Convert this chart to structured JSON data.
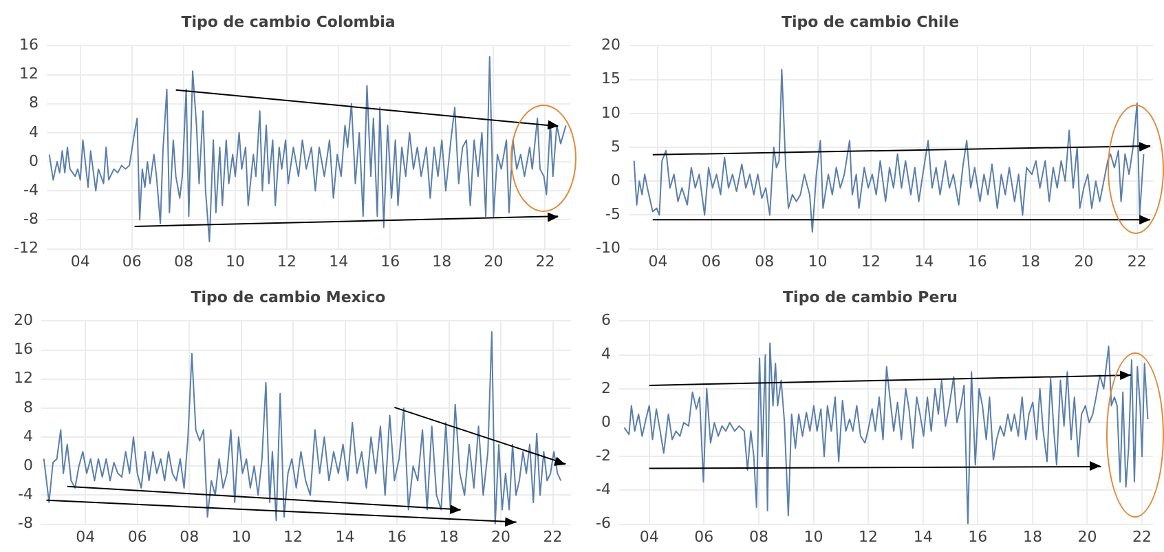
{
  "chart_data": [
    {
      "type": "line",
      "title": "Tipo de cambio Colombia",
      "grid": true,
      "xlim": [
        2002.7,
        2023.0
      ],
      "xticks": [
        {
          "value": 2004,
          "label": "04"
        },
        {
          "value": 2006,
          "label": "06"
        },
        {
          "value": 2008,
          "label": "08"
        },
        {
          "value": 2010,
          "label": "10"
        },
        {
          "value": 2012,
          "label": "12"
        },
        {
          "value": 2014,
          "label": "14"
        },
        {
          "value": 2016,
          "label": "16"
        },
        {
          "value": 2018,
          "label": "18"
        },
        {
          "value": 2020,
          "label": "20"
        },
        {
          "value": 2022,
          "label": "22"
        }
      ],
      "ylim": [
        -12,
        16
      ],
      "yticks": [
        -12,
        -8,
        -4,
        0,
        4,
        8,
        12,
        16
      ],
      "series": [
        {
          "color": "#5a7fab",
          "x": [
            2002.8,
            2002.95,
            2003.1,
            2003.2,
            2003.3,
            2003.4,
            2003.5,
            2003.6,
            2003.8,
            2003.9,
            2004.0,
            2004.1,
            2004.3,
            2004.4,
            2004.6,
            2004.7,
            2004.9,
            2005.0,
            2005.1,
            2005.3,
            2005.45,
            2005.6,
            2005.75,
            2005.9,
            2006.1,
            2006.2,
            2006.3,
            2006.4,
            2006.5,
            2006.6,
            2006.7,
            2006.85,
            2006.95,
            2007.1,
            2007.2,
            2007.35,
            2007.45,
            2007.6,
            2007.7,
            2007.85,
            2007.95,
            2008.1,
            2008.2,
            2008.35,
            2008.5,
            2008.6,
            2008.75,
            2008.85,
            2009.0,
            2009.15,
            2009.25,
            2009.4,
            2009.5,
            2009.65,
            2009.75,
            2009.9,
            2010.0,
            2010.15,
            2010.25,
            2010.4,
            2010.5,
            2010.7,
            2010.8,
            2010.95,
            2011.05,
            2011.2,
            2011.3,
            2011.45,
            2011.55,
            2011.7,
            2011.8,
            2011.95,
            2012.05,
            2012.25,
            2012.45,
            2012.6,
            2012.75,
            2012.95,
            2013.1,
            2013.25,
            2013.45,
            2013.65,
            2013.8,
            2013.95,
            2014.1,
            2014.25,
            2014.35,
            2014.5,
            2014.65,
            2014.8,
            2014.95,
            2015.1,
            2015.25,
            2015.35,
            2015.5,
            2015.6,
            2015.75,
            2015.9,
            2016.05,
            2016.2,
            2016.3,
            2016.45,
            2016.6,
            2016.75,
            2016.9,
            2017.05,
            2017.2,
            2017.4,
            2017.55,
            2017.7,
            2017.85,
            2018.0,
            2018.15,
            2018.35,
            2018.5,
            2018.65,
            2018.8,
            2018.95,
            2019.1,
            2019.25,
            2019.4,
            2019.55,
            2019.7,
            2019.85,
            2020.0,
            2020.15,
            2020.3,
            2020.5,
            2020.6,
            2020.75,
            2020.9,
            2021.05,
            2021.2,
            2021.4,
            2021.5,
            2021.7,
            2021.8,
            2021.95,
            2022.05,
            2022.2,
            2022.3,
            2022.45,
            2022.6,
            2022.8
          ],
          "values": [
            1,
            -2.5,
            0,
            -1.5,
            1.5,
            -1.5,
            2,
            -1,
            -2,
            -1,
            -2.5,
            3,
            -3.5,
            1.5,
            -4,
            -1,
            -3,
            2,
            -2.5,
            -1,
            -1.5,
            -0.5,
            -1,
            -0.5,
            4,
            6,
            -8,
            -1,
            -3.5,
            0,
            -3,
            1,
            -2,
            -8.5,
            1.5,
            10,
            -7,
            3,
            -2,
            -5,
            -2,
            10,
            -7.5,
            12.5,
            5,
            -3,
            7,
            -4,
            -11,
            3,
            -7,
            2,
            -6,
            3,
            -3,
            1,
            -2,
            4,
            -1,
            2,
            -6,
            1,
            -2,
            7,
            -4,
            5,
            -3,
            3,
            -6,
            2,
            -1,
            3,
            -3,
            2,
            -2,
            3,
            -1,
            2,
            -4,
            2,
            -2,
            3,
            -5,
            1,
            -2,
            5,
            2,
            8,
            -3,
            4,
            -7.5,
            10.5,
            -2,
            6,
            -7.5,
            7.5,
            -9,
            5,
            -5,
            3,
            -6,
            2,
            -2,
            4,
            -1,
            2,
            -2,
            2,
            -5,
            2,
            -2,
            3,
            -4,
            3,
            7.5,
            -3,
            2,
            3,
            -6,
            3,
            -2,
            4,
            -7.5,
            14.5,
            -7.5,
            1,
            -1,
            3,
            -7,
            3,
            -1,
            1,
            -2,
            2,
            -1,
            6,
            -1,
            -2,
            -4.5,
            5.5,
            -2,
            5,
            2.5,
            5
          ]
        },
        {
          "type": "line",
          "color": "#000000",
          "x": [
            2007.7,
            2022.5
          ],
          "values": [
            9.9,
            4.9
          ]
        },
        {
          "type": "line",
          "color": "#000000",
          "x": [
            2006.1,
            2022.5
          ],
          "values": [
            -8.9,
            -7.5
          ]
        }
      ]
    },
    {
      "type": "line",
      "title": "Tipo de cambio Chile",
      "grid": true,
      "xlim": [
        2002.9,
        2022.6
      ],
      "xticks": [
        {
          "value": 2004,
          "label": "04"
        },
        {
          "value": 2006,
          "label": "06"
        },
        {
          "value": 2008,
          "label": "08"
        },
        {
          "value": 2010,
          "label": "10"
        },
        {
          "value": 2012,
          "label": "12"
        },
        {
          "value": 2014,
          "label": "14"
        },
        {
          "value": 2016,
          "label": "16"
        },
        {
          "value": 2018,
          "label": "18"
        },
        {
          "value": 2020,
          "label": "20"
        },
        {
          "value": 2022,
          "label": "22"
        }
      ],
      "ylim": [
        -10,
        20
      ],
      "yticks": [
        -10,
        -5,
        0,
        5,
        10,
        15,
        20
      ],
      "series": [
        {
          "color": "#5a7fab",
          "x": [
            2003.1,
            2003.2,
            2003.3,
            2003.4,
            2003.5,
            2003.6,
            2003.8,
            2003.95,
            2004.05,
            2004.15,
            2004.3,
            2004.45,
            2004.6,
            2004.75,
            2004.9,
            2005.1,
            2005.25,
            2005.4,
            2005.55,
            2005.75,
            2005.9,
            2006.05,
            2006.2,
            2006.35,
            2006.5,
            2006.65,
            2006.8,
            2006.95,
            2007.15,
            2007.3,
            2007.45,
            2007.6,
            2007.75,
            2007.9,
            2008.05,
            2008.2,
            2008.35,
            2008.45,
            2008.55,
            2008.65,
            2008.8,
            2008.9,
            2009.05,
            2009.2,
            2009.35,
            2009.5,
            2009.7,
            2009.8,
            2009.95,
            2010.1,
            2010.2,
            2010.4,
            2010.55,
            2010.7,
            2010.85,
            2011.0,
            2011.2,
            2011.3,
            2011.45,
            2011.55,
            2011.75,
            2011.9,
            2012.05,
            2012.2,
            2012.35,
            2012.55,
            2012.7,
            2012.85,
            2013.0,
            2013.15,
            2013.3,
            2013.5,
            2013.65,
            2013.8,
            2013.95,
            2014.15,
            2014.3,
            2014.45,
            2014.6,
            2014.8,
            2014.95,
            2015.1,
            2015.3,
            2015.45,
            2015.6,
            2015.75,
            2015.9,
            2016.1,
            2016.25,
            2016.4,
            2016.55,
            2016.75,
            2016.9,
            2017.05,
            2017.2,
            2017.4,
            2017.55,
            2017.7,
            2017.85,
            2018.05,
            2018.2,
            2018.35,
            2018.55,
            2018.7,
            2018.85,
            2019.0,
            2019.15,
            2019.3,
            2019.45,
            2019.6,
            2019.75,
            2019.85,
            2020.0,
            2020.15,
            2020.3,
            2020.45,
            2020.6,
            2020.75,
            2020.9,
            2021.0,
            2021.15,
            2021.3,
            2021.4,
            2021.55,
            2021.7,
            2021.85,
            2022.0,
            2022.1,
            2022.25
          ],
          "values": [
            3,
            -3.5,
            0,
            -2,
            1,
            -1,
            -4.5,
            -4,
            -5,
            3,
            4.5,
            -1,
            1,
            -3,
            -1,
            -3.5,
            2,
            -1,
            1,
            -5,
            2,
            -1,
            1,
            -2,
            3.5,
            -1,
            1,
            -1.5,
            2.5,
            -1,
            1,
            -2,
            1,
            -2.5,
            -1,
            -5,
            5,
            2,
            3,
            16.5,
            2,
            -4,
            -2,
            -3,
            -2,
            1,
            -2,
            -7.5,
            1,
            6,
            -4,
            1,
            -2,
            2,
            -1,
            1,
            6,
            -2,
            1,
            -4,
            2,
            -1,
            1,
            -2,
            3,
            -3,
            2,
            -1,
            4,
            -1,
            3,
            -2,
            2,
            -3,
            1,
            6,
            -1,
            2,
            -2,
            3,
            -1,
            1,
            -3.5,
            2,
            6,
            -1,
            2,
            -3,
            1,
            -2,
            2.5,
            -4,
            1,
            -2,
            2,
            -3,
            1,
            -5,
            2,
            1,
            3,
            -1,
            3,
            -3,
            2,
            -1,
            3,
            0,
            7.5,
            -1,
            5,
            -4,
            -1,
            1,
            -4,
            0,
            -3,
            0,
            3,
            4,
            2,
            4.5,
            -3,
            4,
            1,
            5,
            11.5,
            -5,
            4
          ]
        },
        {
          "type": "line",
          "color": "#000000",
          "x": [
            2003.8,
            2022.5
          ],
          "values": [
            3.9,
            5.2
          ]
        },
        {
          "type": "line",
          "color": "#000000",
          "x": [
            2003.8,
            2022.5
          ],
          "values": [
            -5.7,
            -5.7
          ]
        }
      ]
    },
    {
      "type": "line",
      "title": "Tipo de cambio Mexico",
      "grid": true,
      "xlim": [
        2002.3,
        2022.7
      ],
      "xticks": [
        {
          "value": 2004,
          "label": "04"
        },
        {
          "value": 2006,
          "label": "06"
        },
        {
          "value": 2008,
          "label": "08"
        },
        {
          "value": 2010,
          "label": "10"
        },
        {
          "value": 2012,
          "label": "12"
        },
        {
          "value": 2014,
          "label": "14"
        },
        {
          "value": 2016,
          "label": "16"
        },
        {
          "value": 2018,
          "label": "18"
        },
        {
          "value": 2020,
          "label": "20"
        },
        {
          "value": 2022,
          "label": "22"
        }
      ],
      "ylim": [
        -8,
        20
      ],
      "yticks": [
        -8,
        -4,
        0,
        4,
        8,
        12,
        16,
        20
      ],
      "series": [
        {
          "color": "#5a7fab",
          "x": [
            2002.4,
            2002.6,
            2002.75,
            2002.9,
            2003.05,
            2003.15,
            2003.3,
            2003.45,
            2003.6,
            2003.75,
            2003.9,
            2004.05,
            2004.2,
            2004.35,
            2004.5,
            2004.65,
            2004.8,
            2004.95,
            2005.1,
            2005.25,
            2005.4,
            2005.55,
            2005.7,
            2005.85,
            2006.0,
            2006.15,
            2006.3,
            2006.45,
            2006.6,
            2006.75,
            2006.9,
            2007.05,
            2007.2,
            2007.35,
            2007.5,
            2007.65,
            2007.8,
            2007.95,
            2008.1,
            2008.25,
            2008.4,
            2008.55,
            2008.7,
            2008.85,
            2009.0,
            2009.15,
            2009.3,
            2009.45,
            2009.6,
            2009.75,
            2009.9,
            2010.05,
            2010.2,
            2010.35,
            2010.5,
            2010.65,
            2010.8,
            2010.95,
            2011.1,
            2011.2,
            2011.35,
            2011.5,
            2011.65,
            2011.8,
            2011.95,
            2012.12,
            2012.3,
            2012.48,
            2012.66,
            2012.84,
            2013.02,
            2013.2,
            2013.38,
            2013.56,
            2013.74,
            2013.92,
            2014.1,
            2014.28,
            2014.46,
            2014.64,
            2014.82,
            2015.0,
            2015.18,
            2015.36,
            2015.54,
            2015.72,
            2015.9,
            2016.08,
            2016.26,
            2016.44,
            2016.62,
            2016.8,
            2016.98,
            2017.16,
            2017.34,
            2017.52,
            2017.7,
            2017.88,
            2018.06,
            2018.24,
            2018.42,
            2018.6,
            2018.78,
            2018.96,
            2019.14,
            2019.32,
            2019.5,
            2019.65,
            2019.78,
            2019.92,
            2020.05,
            2020.18,
            2020.32,
            2020.45,
            2020.58,
            2020.71,
            2020.85,
            2020.98,
            2021.11,
            2021.25,
            2021.38,
            2021.51,
            2021.65,
            2021.78,
            2021.91,
            2022.04,
            2022.18,
            2022.31
          ],
          "values": [
            1,
            -5,
            0.5,
            1,
            5,
            -1,
            3,
            -2,
            -3,
            0,
            2,
            -1,
            1,
            -2,
            1,
            -1.5,
            1,
            -2,
            0.5,
            -1,
            -1.5,
            2,
            -1,
            4,
            -1,
            -3,
            2,
            -2,
            2,
            -1,
            1,
            -2,
            2,
            -1,
            -2,
            1,
            -3,
            4,
            15.5,
            5,
            3.5,
            5,
            -7,
            -2,
            -4,
            1,
            -3,
            -1,
            5,
            -5,
            4,
            -1,
            1,
            -3,
            0,
            -4,
            1,
            11.5,
            -5,
            2,
            -7.5,
            10,
            -7,
            -1,
            1,
            -3,
            2,
            -2,
            -4,
            5,
            -1,
            4,
            -2,
            2,
            -1,
            3,
            -2,
            6,
            -1,
            2,
            -3,
            4,
            -1,
            5.5,
            -4,
            7,
            -2,
            1,
            8,
            -6,
            0,
            -2,
            5,
            -6,
            5.5,
            -4,
            -6,
            6,
            -6,
            8.5,
            -1,
            -4,
            3,
            -3,
            5.5,
            -4,
            2,
            18.5,
            -8,
            3,
            -6,
            -1,
            -6,
            3,
            -4,
            -2,
            2,
            -1,
            3,
            -5,
            4.5,
            -4,
            2,
            -2,
            -1,
            2,
            -1,
            -2
          ]
        },
        {
          "type": "line",
          "color": "#000000",
          "x": [
            2015.9,
            2022.5
          ],
          "values": [
            8.1,
            0.3
          ]
        },
        {
          "type": "line",
          "color": "#000000",
          "x": [
            2003.3,
            2018.45
          ],
          "values": [
            -2.8,
            -6
          ]
        },
        {
          "type": "line",
          "color": "#000000",
          "x": [
            2002.5,
            2020.6
          ],
          "values": [
            -4.7,
            -7.7
          ]
        }
      ]
    },
    {
      "type": "line",
      "title": "Tipo de cambio Peru",
      "grid": true,
      "xlim": [
        2002.9,
        2022.4
      ],
      "xticks": [
        {
          "value": 2004,
          "label": "04"
        },
        {
          "value": 2006,
          "label": "06"
        },
        {
          "value": 2008,
          "label": "08"
        },
        {
          "value": 2010,
          "label": "10"
        },
        {
          "value": 2012,
          "label": "12"
        },
        {
          "value": 2014,
          "label": "14"
        },
        {
          "value": 2016,
          "label": "16"
        },
        {
          "value": 2018,
          "label": "18"
        },
        {
          "value": 2020,
          "label": "20"
        },
        {
          "value": 2022,
          "label": "22"
        }
      ],
      "ylim": [
        -6,
        6
      ],
      "yticks": [
        -6,
        -4,
        -2,
        0,
        2,
        4,
        6
      ],
      "series": [
        {
          "color": "#5a7fab",
          "x": [
            2003.09,
            2003.26,
            2003.35,
            2003.47,
            2003.61,
            2003.74,
            2003.88,
            2004.0,
            2004.12,
            2004.26,
            2004.4,
            2004.53,
            2004.7,
            2004.84,
            2004.98,
            2005.12,
            2005.26,
            2005.44,
            2005.58,
            2005.72,
            2005.84,
            2005.98,
            2006.1,
            2006.24,
            2006.38,
            2006.52,
            2006.66,
            2006.8,
            2006.94,
            2007.12,
            2007.29,
            2007.47,
            2007.59,
            2007.71,
            2007.82,
            2007.92,
            2008.03,
            2008.13,
            2008.24,
            2008.32,
            2008.41,
            2008.52,
            2008.61,
            2008.69,
            2008.82,
            2008.94,
            2009.08,
            2009.2,
            2009.34,
            2009.46,
            2009.6,
            2009.74,
            2009.87,
            2010.01,
            2010.13,
            2010.27,
            2010.39,
            2010.51,
            2010.65,
            2010.79,
            2010.92,
            2011.06,
            2011.18,
            2011.32,
            2011.44,
            2011.58,
            2011.72,
            2011.88,
            2012.0,
            2012.14,
            2012.26,
            2012.4,
            2012.54,
            2012.67,
            2012.79,
            2012.93,
            2013.07,
            2013.21,
            2013.37,
            2013.49,
            2013.63,
            2013.77,
            2013.89,
            2014.02,
            2014.16,
            2014.3,
            2014.44,
            2014.56,
            2014.68,
            2014.82,
            2014.96,
            2015.12,
            2015.24,
            2015.38,
            2015.5,
            2015.64,
            2015.77,
            2015.91,
            2016.05,
            2016.17,
            2016.31,
            2016.43,
            2016.57,
            2016.69,
            2016.82,
            2016.96,
            2017.1,
            2017.22,
            2017.34,
            2017.48,
            2017.62,
            2017.75,
            2017.87,
            2018.01,
            2018.15,
            2018.27,
            2018.39,
            2018.53,
            2018.66,
            2018.78,
            2018.88,
            2019.02,
            2019.15,
            2019.27,
            2019.41,
            2019.53,
            2019.67,
            2019.79,
            2019.93,
            2020.07,
            2020.2,
            2020.32,
            2020.46,
            2020.6,
            2020.67,
            2020.78,
            2020.88,
            2020.99,
            2021.09,
            2021.2,
            2021.3,
            2021.41,
            2021.51,
            2021.62,
            2021.72,
            2021.83,
            2021.93,
            2022.0,
            2022.09,
            2022.21
          ],
          "values": [
            -0.3,
            -0.7,
            1,
            -0.5,
            0.5,
            -0.8,
            0.2,
            1,
            -1,
            0.8,
            -0.5,
            -1.8,
            0.5,
            -1,
            -0.5,
            -0.8,
            0,
            -0.2,
            1.8,
            0.8,
            1.5,
            -3.5,
            2,
            -1.2,
            0,
            -0.8,
            -0.2,
            -0.5,
            0,
            -0.5,
            -0.2,
            -0.5,
            -2.8,
            -0.5,
            -2,
            -5,
            3.8,
            -2,
            4,
            -5.2,
            4.7,
            1,
            3.5,
            1,
            2.5,
            0,
            -5.5,
            0.5,
            -1.5,
            0.5,
            -0.8,
            0.6,
            -0.5,
            1,
            -0.5,
            0.8,
            -2,
            1,
            -0.5,
            1.5,
            -2.3,
            1.3,
            -0.5,
            0.2,
            -0.5,
            1,
            -0.8,
            -1.2,
            -0.4,
            0.8,
            -0.5,
            1.5,
            -1,
            3.3,
            1.5,
            -0.5,
            1.2,
            -1,
            2,
            0.8,
            -1.5,
            1.5,
            0.5,
            -0.8,
            1.5,
            -0.5,
            2,
            0.5,
            2.5,
            -0.2,
            1,
            2.7,
            0,
            1,
            2.2,
            -6,
            3,
            -2.5,
            2,
            1,
            -1,
            1.5,
            -2.2,
            -1,
            -0.2,
            -0.8,
            0.5,
            -0.5,
            0.5,
            -0.8,
            1.5,
            -1,
            0.5,
            1.2,
            -1,
            2,
            -0.5,
            -2.3,
            2.6,
            -0.5,
            -2.5,
            2.5,
            -0.2,
            3,
            -1,
            1.5,
            -2,
            0.5,
            1,
            0,
            0.5,
            1.5,
            2.8,
            2,
            3,
            4.5,
            1,
            1.5,
            1,
            -3.5,
            1.8,
            -3.8,
            -1.5,
            3.7,
            -3.5,
            3.3,
            1,
            -2,
            3.5,
            0.2
          ]
        },
        {
          "type": "line",
          "color": "#000000",
          "x": [
            2004.0,
            2021.6
          ],
          "values": [
            2.2,
            2.8
          ]
        },
        {
          "type": "line",
          "color": "#000000",
          "x": [
            2004.0,
            2020.5
          ],
          "values": [
            -2.7,
            -2.6
          ]
        }
      ]
    }
  ]
}
